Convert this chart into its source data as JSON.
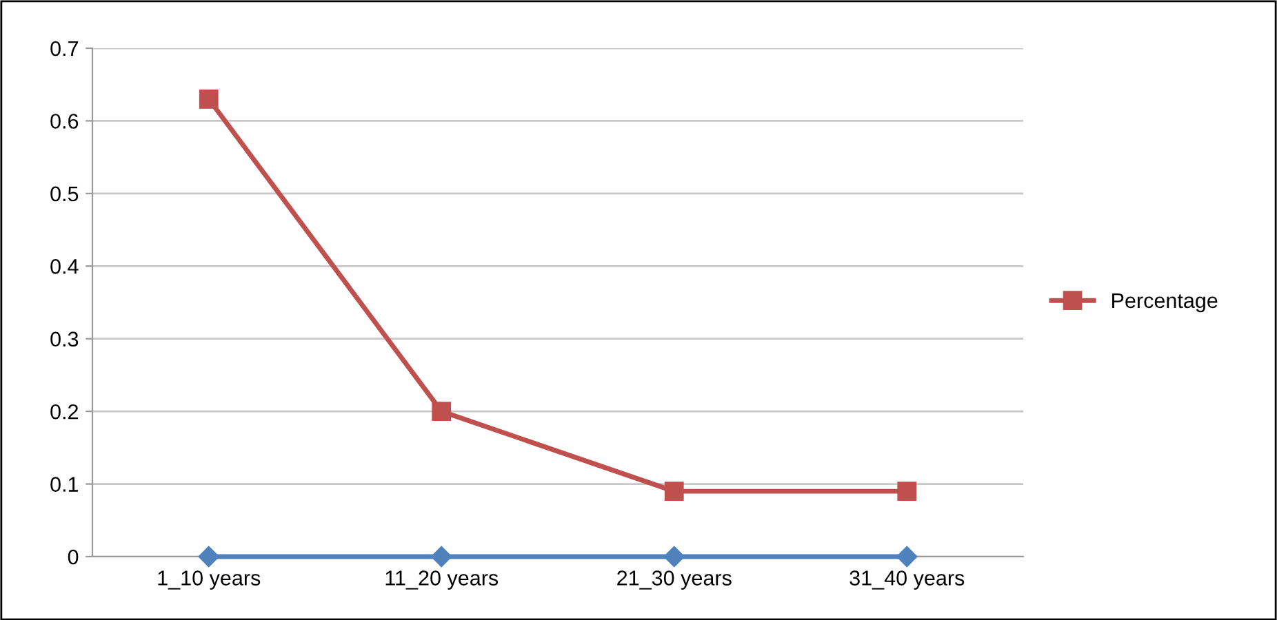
{
  "chart_data": {
    "type": "line",
    "categories": [
      "1_10 years",
      "11_20 years",
      "21_30 years",
      "31_40 years"
    ],
    "series": [
      {
        "name": "Percentage",
        "color": "#c0504d",
        "values": [
          0.63,
          0.2,
          0.09,
          0.09
        ],
        "marker": "square"
      },
      {
        "color": "#4f81bd",
        "values": [
          0,
          0,
          0,
          0
        ],
        "marker": "diamond"
      }
    ],
    "ylim": [
      0,
      0.7
    ],
    "yticks": [
      0,
      0.1,
      0.2,
      0.3,
      0.4,
      0.5,
      0.6,
      0.7
    ],
    "grid": "y",
    "legend": "right",
    "line_style": "solid"
  }
}
